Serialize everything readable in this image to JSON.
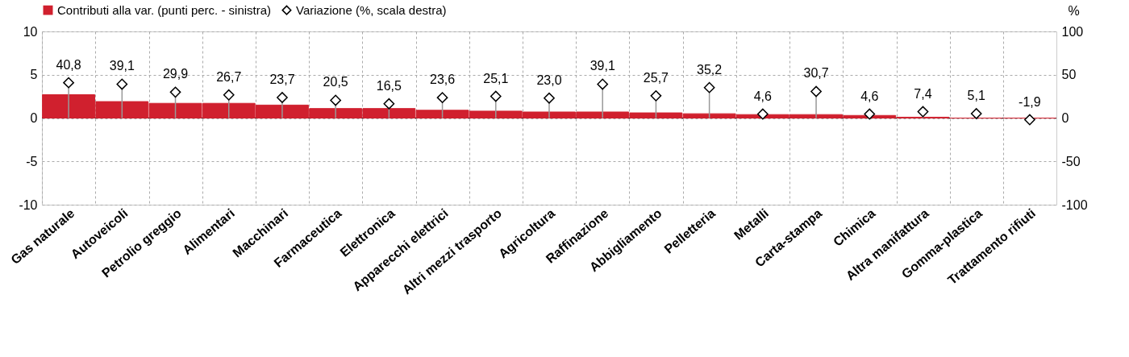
{
  "chart_data": {
    "type": "bar",
    "categories": [
      "Gas naturale",
      "Autoveicoli",
      "Petrolio greggio",
      "Alimentari",
      "Macchinari",
      "Farmaceutica",
      "Elettronica",
      "Apparecchi elettrici",
      "Altri mezzi trasporto",
      "Agricoltura",
      "Raffinazione",
      "Abbigliamento",
      "Pelletteria",
      "Metalli",
      "Carta-stampa",
      "Chimica",
      "Altra manifattura",
      "Gomma-plastica",
      "Trattamento rifiuti"
    ],
    "series": [
      {
        "name": "Contributi alla var. (punti perc. - sinistra)",
        "color": "#d0202e",
        "values": [
          2.7,
          1.9,
          1.7,
          1.7,
          1.5,
          1.1,
          1.1,
          0.9,
          0.8,
          0.7,
          0.7,
          0.6,
          0.5,
          0.4,
          0.4,
          0.3,
          0.1,
          0.0,
          0.0
        ]
      },
      {
        "name": "Variazione (%, scala destra)",
        "type": "lollipop",
        "axis": "y2",
        "marker": "diamond",
        "color": "#000000",
        "values": [
          40.8,
          39.1,
          29.9,
          26.7,
          23.7,
          20.5,
          16.5,
          23.6,
          25.1,
          23.0,
          39.1,
          25.7,
          35.2,
          4.6,
          30.7,
          4.6,
          7.4,
          5.1,
          -1.9
        ],
        "value_labels": [
          "40,8",
          "39,1",
          "29,9",
          "26,7",
          "23,7",
          "20,5",
          "16,5",
          "23,6",
          "25,1",
          "23,0",
          "39,1",
          "25,7",
          "35,2",
          "4,6",
          "30,7",
          "4,6",
          "7,4",
          "5,1",
          "-1,9"
        ]
      }
    ],
    "ylim": [
      -10,
      10
    ],
    "yticks": [
      -10,
      -5,
      0,
      5,
      10
    ],
    "y2lim": [
      -100,
      100
    ],
    "y2ticks": [
      -100,
      -50,
      0,
      50,
      100
    ],
    "y2label": "%",
    "grid": true,
    "legend": "top"
  }
}
